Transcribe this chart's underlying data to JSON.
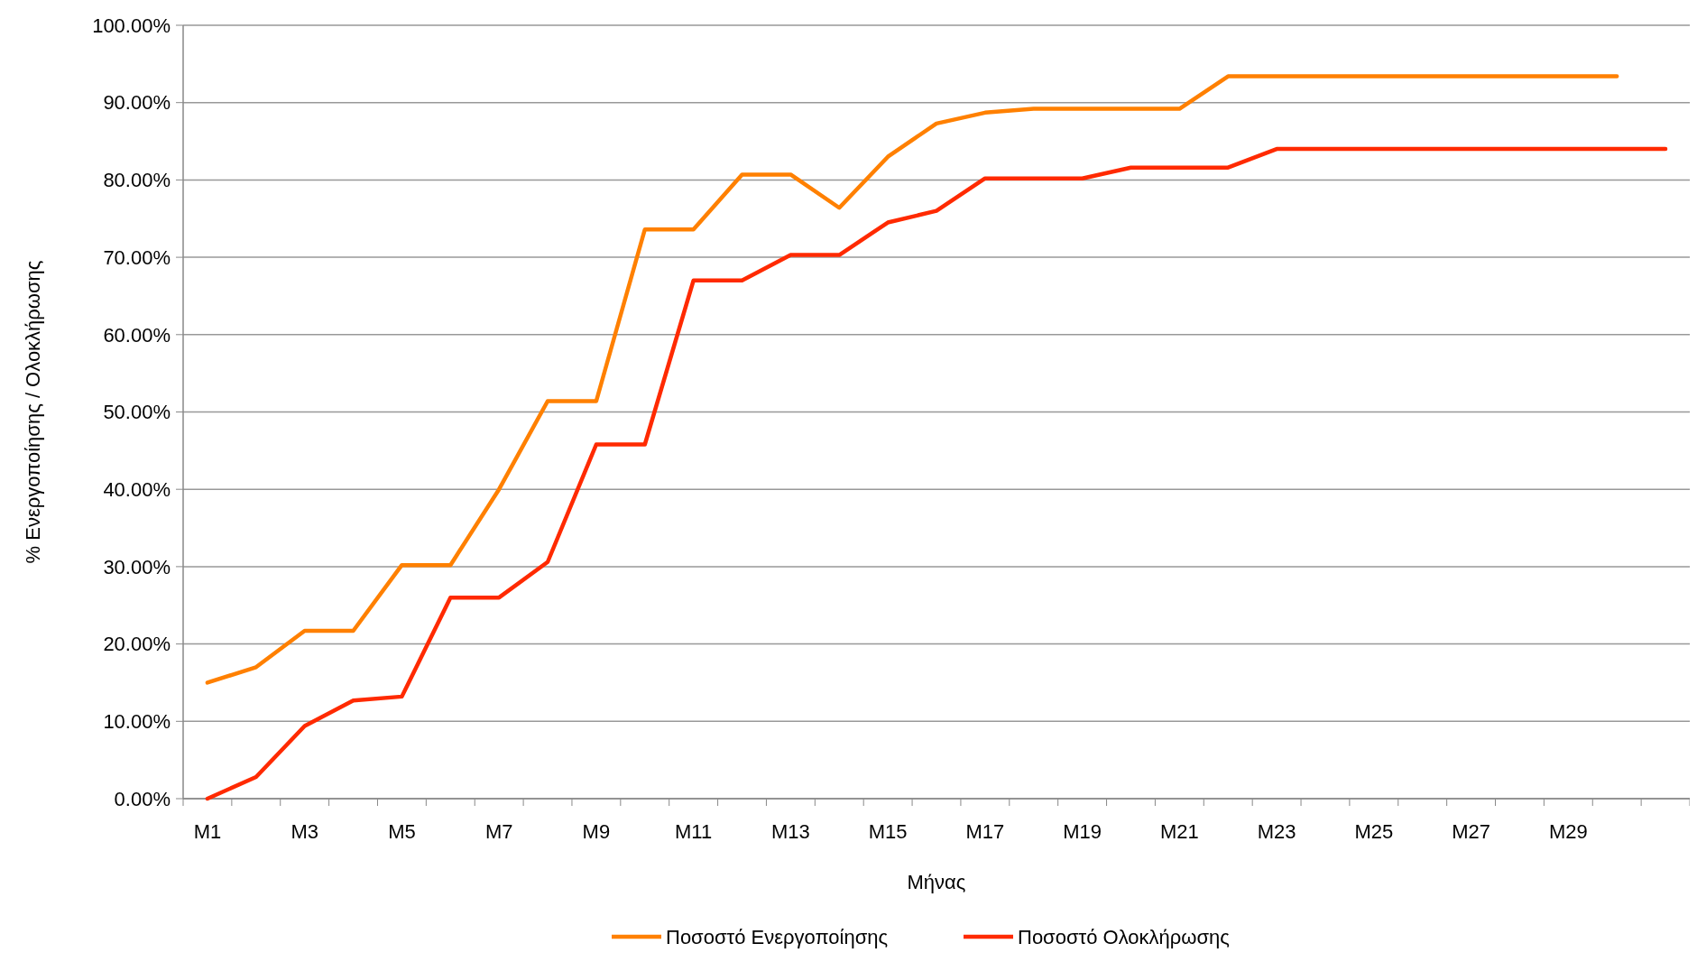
{
  "chart_data": {
    "type": "line",
    "xlabel": "Μήνας",
    "ylabel": "% Ενεργοποίησης / Ολοκλήρωσης",
    "categories": [
      "M1",
      null,
      "M3",
      null,
      "M5",
      null,
      "M7",
      null,
      "M9",
      null,
      "M11",
      null,
      "M13",
      null,
      "M15",
      null,
      "M17",
      null,
      "M19",
      null,
      "M21",
      null,
      "M23",
      null,
      "M25",
      null,
      "M27",
      null,
      "M29",
      null,
      null
    ],
    "series": [
      {
        "name": "Ποσοστό Ενεργοποίησης",
        "color": "#ff8000",
        "values": [
          15,
          17,
          21.7,
          21.7,
          30.2,
          30.2,
          40,
          51.4,
          51.4,
          73.6,
          73.6,
          80.7,
          80.7,
          76.4,
          83,
          87.3,
          88.7,
          89.2,
          89.2,
          89.2,
          89.2,
          93.4,
          93.4,
          93.4,
          93.4,
          93.4,
          93.4,
          93.4,
          93.4,
          93.4,
          null
        ]
      },
      {
        "name": "Ποσοστό Ολοκλήρωσης",
        "color": "#ff2a00",
        "values": [
          0,
          2.8,
          9.4,
          12.7,
          13.2,
          26,
          26,
          30.6,
          45.8,
          45.8,
          67,
          67,
          70.3,
          70.3,
          74.5,
          76,
          80.2,
          80.2,
          80.2,
          81.6,
          81.6,
          81.6,
          84,
          84,
          84,
          84,
          84,
          84,
          84,
          84,
          84
        ]
      }
    ],
    "ylim": [
      0,
      100
    ],
    "yticks": [
      {
        "value": 0,
        "label": "0.00%"
      },
      {
        "value": 10,
        "label": "10.00%"
      },
      {
        "value": 20,
        "label": "20.00%"
      },
      {
        "value": 30,
        "label": "30.00%"
      },
      {
        "value": 40,
        "label": "40.00%"
      },
      {
        "value": 50,
        "label": "50.00%"
      },
      {
        "value": 60,
        "label": "60.00%"
      },
      {
        "value": 70,
        "label": "70.00%"
      },
      {
        "value": 80,
        "label": "80.00%"
      },
      {
        "value": 90,
        "label": "90.00%"
      },
      {
        "value": 100,
        "label": "100.00%"
      }
    ],
    "grid": "y",
    "legend": "bottom",
    "marker": "none",
    "line_style": "solid"
  }
}
